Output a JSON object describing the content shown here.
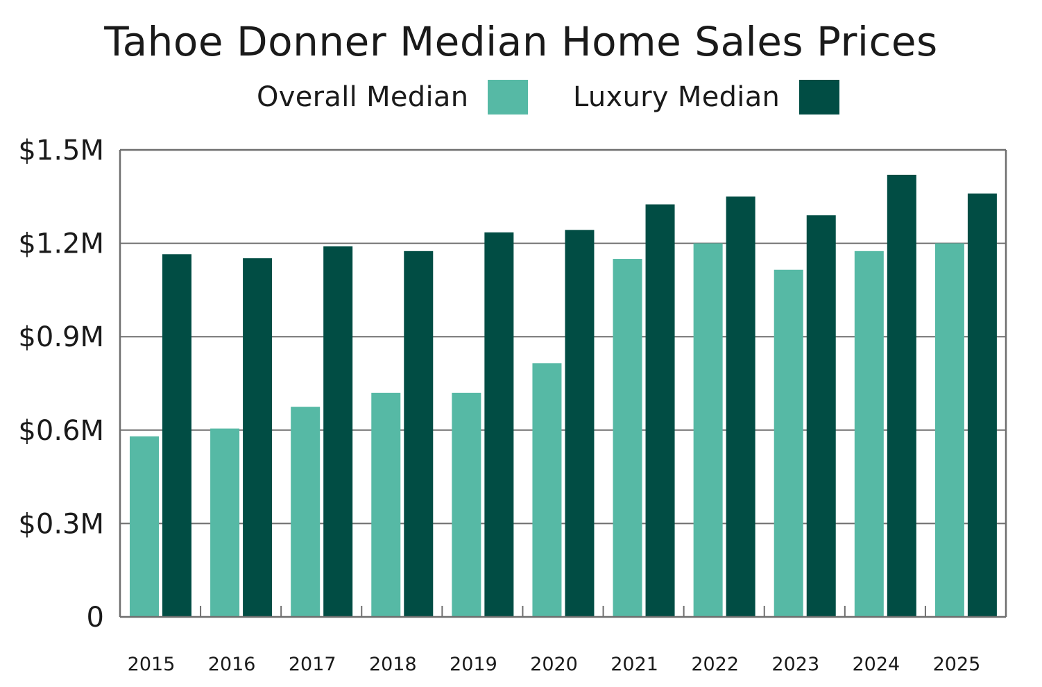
{
  "chart_data": {
    "type": "bar",
    "title": "Tahoe Donner Median Home Sales Prices",
    "categories": [
      "2015",
      "2016",
      "2017",
      "2018",
      "2019",
      "2020",
      "2021",
      "2022",
      "2023",
      "2024",
      "2025"
    ],
    "series": [
      {
        "name": "Overall Median",
        "color": "#56b9a5",
        "values": [
          0.58,
          0.605,
          0.675,
          0.72,
          0.72,
          0.815,
          1.15,
          1.2,
          1.115,
          1.175,
          1.2
        ]
      },
      {
        "name": "Luxury Median",
        "color": "#014d44",
        "values": [
          1.165,
          1.152,
          1.19,
          1.175,
          1.235,
          1.243,
          1.325,
          1.35,
          1.29,
          1.42,
          1.36
        ]
      }
    ],
    "ylim": [
      0,
      1.5
    ],
    "yticks": [
      0,
      0.3,
      0.6,
      0.9,
      1.2,
      1.5
    ],
    "ytick_labels": [
      "0",
      "$0.3M",
      "$0.6M",
      "$0.9M",
      "$1.2M",
      "$1.5M"
    ],
    "xlabel": "",
    "ylabel": "",
    "grid": true,
    "legend_position": "top-center"
  },
  "legend": {
    "overall_label": "Overall Median",
    "luxury_label": "Luxury Median"
  },
  "colors": {
    "overall": "#56b9a5",
    "luxury": "#014d44",
    "grid": "#6e6e6e"
  }
}
